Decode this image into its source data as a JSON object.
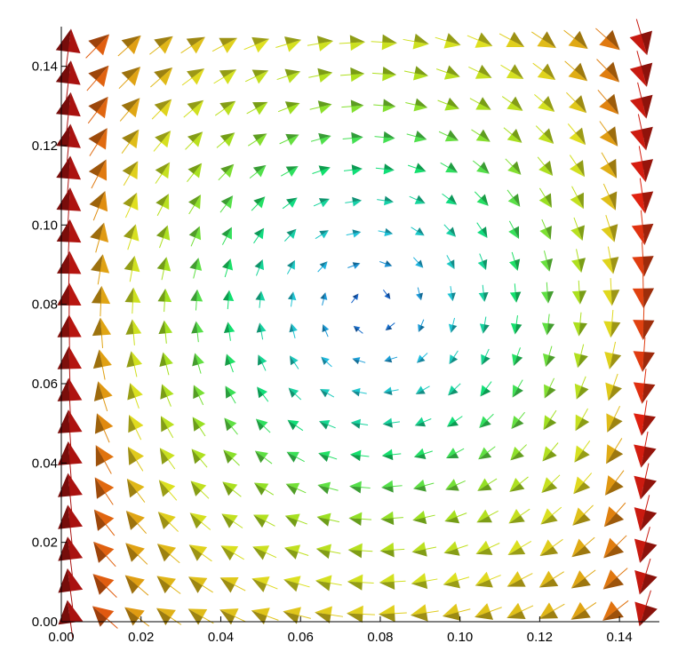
{
  "chart_data": {
    "type": "vector-field",
    "title": "",
    "xlabel": "",
    "ylabel": "",
    "xlim": [
      0.0,
      0.15
    ],
    "ylim": [
      0.0,
      0.15
    ],
    "x_ticks": [
      "0.00",
      "0.02",
      "0.04",
      "0.06",
      "0.08",
      "0.10",
      "0.12",
      "0.14"
    ],
    "y_ticks": [
      "0.00",
      "0.02",
      "0.04",
      "0.06",
      "0.08",
      "0.10",
      "0.12",
      "0.14"
    ],
    "grid": false,
    "legend": "none",
    "flow": {
      "pattern": "single clockwise vortex",
      "center": [
        0.078,
        0.079
      ],
      "grid_spacing": 0.008,
      "magnitude_scale": "low at vortex center, highest along left wall (upward) and right wall (downward)"
    },
    "colormap": [
      "#1040c0",
      "#20c0e0",
      "#10e070",
      "#a0e020",
      "#e0e020",
      "#e09010",
      "#e02010",
      "#a01010"
    ]
  }
}
